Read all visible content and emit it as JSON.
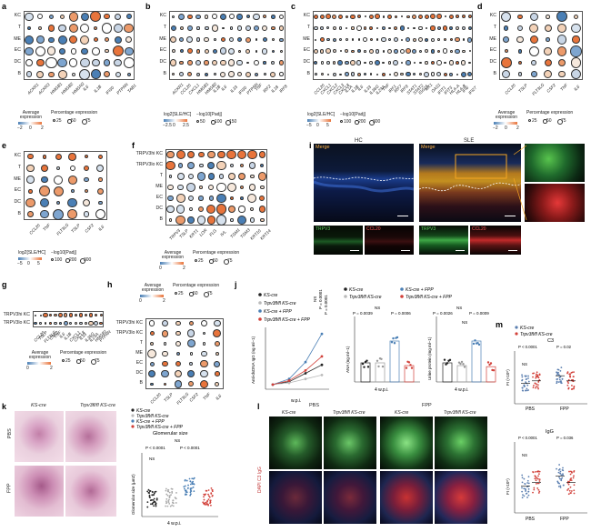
{
  "panels": {
    "a": {
      "label": "a",
      "rows": [
        "KC",
        "T",
        "ME",
        "EC",
        "DC",
        "B"
      ],
      "genes": [
        "ACKR1",
        "ACKR3",
        "HMGB1",
        "HMGB2",
        "HMGN3",
        "IL6",
        "IL1B",
        "IFI30",
        "PTPRN",
        "TAB1"
      ],
      "legend_avg": "Average expression",
      "legend_pct": "Percentage expression",
      "avg_ticks": [
        "−2",
        "0",
        "2"
      ],
      "pct_ticks": [
        "25",
        "50",
        "75"
      ]
    },
    "b": {
      "label": "b",
      "rows": [
        "KC",
        "T",
        "ME",
        "EC",
        "DC",
        "B"
      ],
      "genes": [
        "ACKR1",
        "CCL20",
        "CXCL1",
        "HMGB1",
        "HMGB2",
        "IL1B",
        "IL6",
        "IL33",
        "IFI30",
        "PTPRN",
        "TNF",
        "IRF2",
        "IL18",
        "IRF8"
      ],
      "legend_fc": "log2[SLE/HC]",
      "legend_p": "−log10[Padj]",
      "fc_ticks": [
        "−2.5",
        "0",
        "2.5"
      ],
      "p_ticks": [
        "50",
        "100",
        "150"
      ]
    },
    "c": {
      "label": "c",
      "rows": [
        "KC",
        "T",
        "ME",
        "EC",
        "DC",
        "B"
      ],
      "genes": [
        "CCL20",
        "CXCL1",
        "CXCL2",
        "CXCL3",
        "CXCL8",
        "IL1A",
        "IL1B",
        "IL6",
        "IL33",
        "IL36G",
        "IL23A",
        "TNF",
        "IRF1",
        "IRF7",
        "IRF9",
        "STAT1",
        "STAT2",
        "ISG15",
        "MX1",
        "OAS1",
        "IFIT1",
        "IFIT3",
        "HLA-A",
        "HLA-B",
        "IFI6",
        "IFI27"
      ],
      "legend_fc": "log2[SLE/HC]",
      "legend_p": "−log10[Padj]",
      "fc_ticks": [
        "−5",
        "0",
        "5"
      ],
      "p_ticks": [
        "100",
        "200",
        "300"
      ]
    },
    "d": {
      "label": "d",
      "rows": [
        "KC",
        "T",
        "ME",
        "EC",
        "DC",
        "B"
      ],
      "genes": [
        "CCL20",
        "TSLP",
        "FLT3LG",
        "CSF2",
        "TNF",
        "IL6"
      ],
      "legend_avg": "Average expression",
      "legend_pct": "Percentage expression",
      "avg_ticks": [
        "−2",
        "0",
        "2"
      ],
      "pct_ticks": [
        "25",
        "50",
        "75"
      ]
    },
    "e": {
      "label": "e",
      "rows": [
        "KC",
        "T",
        "ME",
        "EC",
        "DC",
        "B"
      ],
      "genes": [
        "CCL20",
        "TNF",
        "FLT3LG",
        "TSLP",
        "CSF2",
        "IL6"
      ],
      "legend_fc": "log2[SLE/HC]",
      "legend_p": "−log10[Padj]",
      "fc_ticks": [
        "−5",
        "0",
        "5"
      ],
      "p_ticks": [
        "100",
        "200",
        "300"
      ]
    },
    "f": {
      "label": "f",
      "rows": [
        "TRPV3hi KC",
        "TRPV3lo KC",
        "T",
        "ME",
        "EC",
        "DC",
        "B"
      ],
      "genes": [
        "TRPV3",
        "TSLP",
        "KRT1",
        "LOR",
        "FLG",
        "IVL",
        "TGM1",
        "TGM3",
        "KRT10",
        "KRT14"
      ],
      "legend_avg": "Average expression",
      "legend_pct": "Percentage expression",
      "avg_ticks": [
        "0",
        "2"
      ],
      "pct_ticks": [
        "25",
        "50",
        "75"
      ]
    },
    "g": {
      "label": "g",
      "rows": [
        "TRPV3hi KC",
        "TRPV3lo KC"
      ],
      "genes": [
        "CCL20",
        "TSLP",
        "FLT3LG",
        "CSF2",
        "TNF",
        "IL6",
        "IL1B",
        "CXCL1",
        "CXCL8",
        "IL33",
        "IL36G",
        "IL23A",
        "HMGB1",
        "PTPRN"
      ],
      "legend_avg": "Average expression",
      "legend_pct": "Percentage expression",
      "avg_ticks": [
        "0",
        "2"
      ],
      "pct_ticks": [
        "25",
        "50",
        "75"
      ]
    },
    "h": {
      "label": "h",
      "rows": [
        "TRPV3hi KC",
        "TRPV3lo KC",
        "T",
        "ME",
        "EC",
        "DC",
        "B"
      ],
      "genes": [
        "CCL20",
        "TSLP",
        "FLT3LG",
        "CSF2",
        "TNF",
        "IL6"
      ],
      "legend_avg": "Average expression",
      "legend_pct": "Percentage expression",
      "avg_ticks": [
        "0",
        "2"
      ],
      "pct_ticks": [
        "25",
        "50",
        "75"
      ]
    },
    "i": {
      "label": "i",
      "hc": "HC",
      "sle": "SLE",
      "merge": "Merge",
      "trpv3": "TRPV3",
      "ccl20": "CCL20"
    },
    "j": {
      "label": "j",
      "legend": [
        "KS-cre",
        "Trpv3fl/fl KS-cre",
        "KS-cre + FPP",
        "Trpv3fl/fl KS-cre + FPP"
      ],
      "ylabel": "Anti-dsDNA IgG (ng ml−1)",
      "xlabel": "w.p.i.",
      "ana_ylabel": "ANA (ng ml−1)",
      "urine_ylabel": "Urine protein (mg ml−1)",
      "xlabel2": "4 w.p.i.",
      "stats": [
        "NS",
        "P = 0.0001",
        "P = 0.0001",
        "NS",
        "P = 0.0039",
        "P = 0.0006",
        "NS",
        "P = 0.0026",
        "P = 0.0009",
        "NS"
      ]
    },
    "k": {
      "label": "k",
      "cols": [
        "KS-cre",
        "Trpv3fl/fl KS-cre"
      ],
      "rows": [
        "PBS",
        "FPP"
      ],
      "legend": [
        "KS-cre",
        "Trpv3fl/fl KS-cre",
        "KS-cre + FPP",
        "Trpv3fl/fl KS-cre + FPP"
      ],
      "chart_title": "Glomerular size",
      "ylabel": "Glomerular size (μm2)",
      "xlabel": "4 w.p.i.",
      "stats": [
        "NS",
        "P < 0.0001",
        "P < 0.0001",
        "NS"
      ]
    },
    "l": {
      "label": "l",
      "groups": [
        "PBS",
        "FPP"
      ],
      "cols": [
        "KS-cre",
        "Trpv3fl/fl KS-cre",
        "KS-cre",
        "Trpv3fl/fl KS-cre"
      ],
      "side": "DAPI C3 IgG"
    },
    "m": {
      "label": "m",
      "legend": [
        "KS-cre",
        "Trpv3fl/fl KS-cre"
      ],
      "chart_c3_title": "C3",
      "chart_igg_title": "IgG",
      "ylabel": "FI (×10⁵)",
      "xcats": [
        "PBS",
        "FPP"
      ],
      "stats_c3": [
        "P < 0.0001",
        "P = 0.02",
        "NS"
      ],
      "stats_igg": [
        "P < 0.0001",
        "P = 0.036",
        "NS"
      ]
    }
  },
  "colors": {
    "orange": "#e8743b",
    "blue": "#4a7fb5",
    "pale": "#f3e3d3",
    "paleblue": "#c9d6e6",
    "red": "#d2413a",
    "gray": "#8c8c8c",
    "navy": "#2b4a7a",
    "pink": "#e98c82"
  }
}
